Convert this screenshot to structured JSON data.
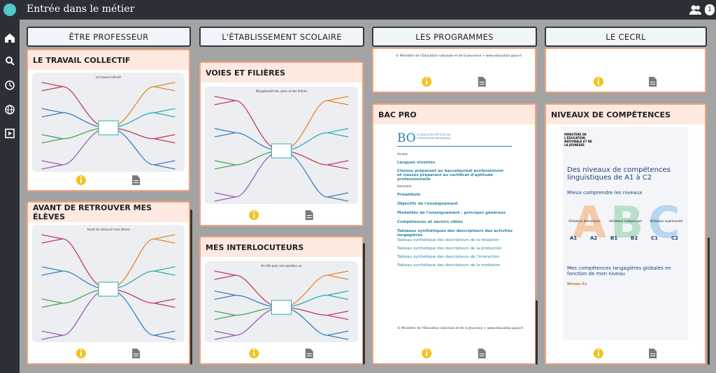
{
  "header": {
    "title": "Entrée dans le métier",
    "badge": "1"
  },
  "columns": [
    {
      "title": "ÊTRE PROFESSEUR",
      "cards": [
        {
          "title": "LE TRAVAIL COLLECTIF",
          "preview": "Le travail collectif"
        },
        {
          "title": "AVANT DE RETROUVER MES ÉLÈVES",
          "preview": "Avant de retrouver mes élèves"
        }
      ]
    },
    {
      "title": "L'ÉTABLISSEMENT SCOLAIRE",
      "cards": [
        {
          "title": "VOIES ET FILIÈRES",
          "preview": "Récapitulatif des voies et des filières"
        },
        {
          "title": "MES INTERLOCUTEURS",
          "preview": "Un rôle pour une question ou"
        }
      ]
    },
    {
      "title": "LES PROGRAMMES",
      "cards": [
        {
          "footer": "© Ministère de l'Éducation nationale et de la Jeunesse > www.education.gouv.fr"
        },
        {
          "title": "BAC PRO",
          "doc": {
            "logo": "BO",
            "logo_text": "LE BULLETIN OFFICIEL DE L'ÉDUCATION NATIONALE",
            "annex": "Annexe",
            "subject": "Langues vivantes",
            "classes": "Classes préparant au baccalauréat professionnel et classes préparant au certificat d'aptitude professionnelle",
            "summary": "Sommaire",
            "sections": [
              "Préambule",
              "Objectifs de l'enseignement",
              "Modalités de l'enseignement : principes généraux",
              "Compétences et savoirs cibles",
              "Tableaux synthétiques des descripteurs des activités langagières"
            ],
            "tables": [
              "Tableau synthétique des descripteurs de la réception",
              "Tableau synthétique des descripteurs de la production",
              "Tableau synthétique des descripteurs de l'interaction",
              "Tableau synthétique des descripteurs de la médiation"
            ],
            "footer": "© Ministère de l'Éducation nationale et de la Jeunesse > www.education.gouv.fr"
          }
        }
      ]
    },
    {
      "title": "LE CECRL",
      "cards": [
        {},
        {
          "title": "NIVEAUX DE COMPÉTENCES",
          "doc": {
            "ministry": "MINISTÈRE DE L'ÉDUCATION NATIONALE ET DE LA JEUNESSE",
            "heading": "Des niveaux de compétences linguistiques de A1 à C2",
            "subheading": "Mieux comprendre les niveaux",
            "letters": [
              "A",
              "B",
              "C"
            ],
            "users": [
              "Utilisateur élémentaire",
              "Utilisateur indépendant",
              "Utilisateur expérimenté"
            ],
            "levels": [
              "A1",
              "A2",
              "B1",
              "B2",
              "C1",
              "C2"
            ],
            "section": "Mes compétences langagières globales en fonction de mon niveau",
            "level_title": "Niveau A1"
          }
        }
      ]
    }
  ]
}
